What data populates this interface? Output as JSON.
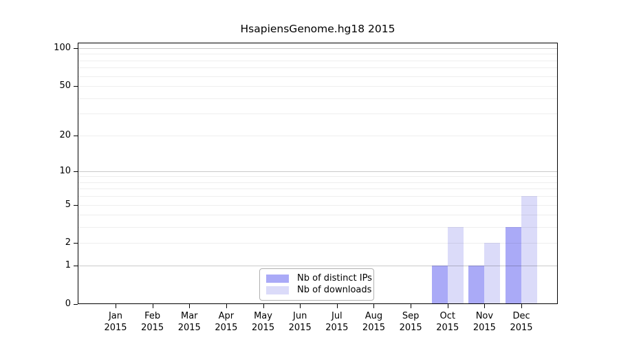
{
  "chart_data": {
    "type": "bar",
    "title": "HsapiensGenome.hg18 2015",
    "y_scale": "log(1+x)",
    "categories": [
      "Jan 2015",
      "Feb 2015",
      "Mar 2015",
      "Apr 2015",
      "May 2015",
      "Jun 2015",
      "Jul 2015",
      "Aug 2015",
      "Sep 2015",
      "Oct 2015",
      "Nov 2015",
      "Dec 2015"
    ],
    "series": [
      {
        "name": "Nb of distinct IPs",
        "color": "#aaaaf7",
        "values": [
          0,
          0,
          0,
          0,
          0,
          0,
          0,
          0,
          0,
          1,
          1,
          3
        ]
      },
      {
        "name": "Nb of downloads",
        "color": "#dbdbf9",
        "values": [
          0,
          0,
          0,
          0,
          0,
          0,
          0,
          0,
          0,
          3,
          2,
          6
        ]
      }
    ],
    "y_ticks": [
      0,
      1,
      2,
      5,
      10,
      20,
      50,
      100
    ],
    "grid_major_values": [
      1,
      10,
      100
    ],
    "grid_minor_values": [
      2,
      3,
      4,
      5,
      6,
      7,
      8,
      9,
      20,
      30,
      40,
      50,
      60,
      70,
      80,
      90
    ],
    "ylim": [
      0,
      110
    ],
    "xlabel": "",
    "ylabel": "",
    "grid": "horizontal",
    "legend_position": "lower center"
  }
}
